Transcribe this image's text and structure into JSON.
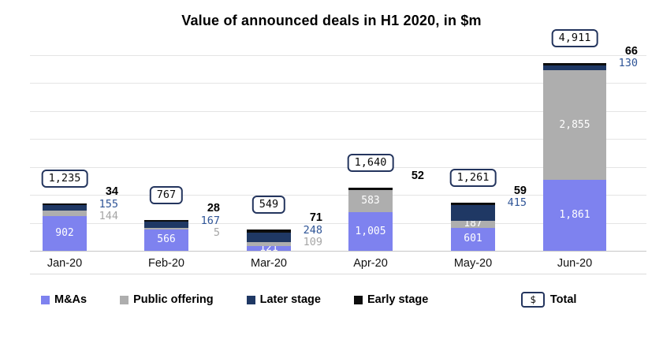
{
  "title": "Value of announced deals in H1 2020, in $m",
  "chart_data": {
    "type": "bar",
    "stacked": true,
    "title": "Value of announced deals in H1 2020, in $m",
    "categories": [
      "Jan-20",
      "Feb-20",
      "Mar-20",
      "Apr-20",
      "May-20",
      "Jun-20"
    ],
    "series": [
      {
        "name": "M&As",
        "color": "#7e82ef",
        "label_color": "#ffffff",
        "values": [
          902,
          566,
          121,
          1005,
          601,
          1861
        ],
        "placement": [
          "in",
          "in",
          "in",
          "in",
          "in",
          "in"
        ]
      },
      {
        "name": "Public offering",
        "color": "#aeaeae",
        "label_color": "#a6a6a6",
        "values": [
          144,
          5,
          109,
          583,
          187,
          2855
        ],
        "placement": [
          "out",
          "out",
          "out",
          "in",
          "in",
          "in"
        ]
      },
      {
        "name": "Later stage",
        "color": "#1f3864",
        "label_color": "#2f5597",
        "values": [
          155,
          167,
          248,
          0,
          415,
          130
        ],
        "placement": [
          "out",
          "out",
          "out",
          "none",
          "out",
          "out"
        ]
      },
      {
        "name": "Early stage",
        "color": "#0d0d0d",
        "label_color": "#000000",
        "values": [
          34,
          28,
          71,
          52,
          59,
          66
        ],
        "placement": [
          "out",
          "out",
          "out",
          "out",
          "out",
          "out"
        ]
      }
    ],
    "totals": [
      1235,
      767,
      549,
      1640,
      1261,
      4911
    ],
    "ylim": [
      0,
      5320
    ],
    "grid": true,
    "legend_position": "bottom"
  },
  "legend": {
    "items": [
      {
        "label": "M&As",
        "color": "#7e82ef"
      },
      {
        "label": "Public offering",
        "color": "#aeaeae"
      },
      {
        "label": "Later stage",
        "color": "#1f3864"
      },
      {
        "label": "Early stage",
        "color": "#0d0d0d"
      }
    ],
    "total": {
      "symbol": "$",
      "label": "Total"
    }
  }
}
